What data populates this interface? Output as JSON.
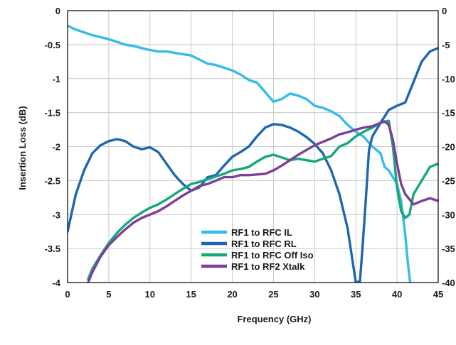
{
  "chart_data": {
    "type": "line",
    "title": "",
    "xlabel": "Frequency (GHz)",
    "ylabel": "Insertion Loss (dB)",
    "xlim": [
      0,
      45
    ],
    "ylim": [
      -4,
      0
    ],
    "x_ticks": [
      "0",
      "5",
      "10",
      "15",
      "20",
      "25",
      "30",
      "35",
      "40",
      "45"
    ],
    "y_ticks": [
      "0",
      "-0.5",
      "-1",
      "-1.5",
      "-2",
      "-2.5",
      "-3",
      "-3.5",
      "-4"
    ],
    "y2_ticks": [
      "0",
      "-5",
      "-10",
      "-15",
      "-20",
      "-25",
      "-30",
      "-35",
      "-40"
    ],
    "grid": true,
    "legend_position": "bottom-center",
    "series": [
      {
        "name": "RF1 to RFC IL",
        "color": "#35bce8",
        "x": [
          0,
          1,
          2,
          3,
          4,
          5,
          6,
          7,
          8,
          9,
          10,
          11,
          12,
          13,
          14,
          15,
          16,
          17,
          18,
          19,
          20,
          21,
          22,
          23,
          24,
          25,
          26,
          27,
          28,
          29,
          30,
          31,
          32,
          33,
          34,
          35,
          36,
          37,
          38,
          38.5,
          39,
          39.5,
          40,
          40.5,
          41,
          41.3,
          41.6
        ],
        "y": [
          -0.22,
          -0.28,
          -0.32,
          -0.36,
          -0.39,
          -0.42,
          -0.46,
          -0.5,
          -0.52,
          -0.55,
          -0.58,
          -0.6,
          -0.6,
          -0.62,
          -0.64,
          -0.66,
          -0.72,
          -0.78,
          -0.8,
          -0.84,
          -0.88,
          -0.94,
          -1.02,
          -1.06,
          -1.2,
          -1.34,
          -1.3,
          -1.22,
          -1.25,
          -1.3,
          -1.4,
          -1.43,
          -1.48,
          -1.55,
          -1.68,
          -1.78,
          -1.86,
          -2.0,
          -2.1,
          -2.3,
          -2.35,
          -2.45,
          -2.55,
          -2.8,
          -3.3,
          -3.7,
          -4.0
        ]
      },
      {
        "name": "RF1 to RFC RL",
        "color": "#1c67b0",
        "x": [
          0,
          1,
          2,
          3,
          4,
          5,
          6,
          7,
          8,
          9,
          10,
          11,
          12,
          13,
          14,
          15,
          16,
          17,
          18,
          19,
          20,
          21,
          22,
          23,
          24,
          25,
          26,
          27,
          28,
          29,
          30,
          31,
          32,
          33,
          34,
          34.5,
          35,
          35.5,
          35.8,
          36.2,
          36.6,
          37,
          38,
          39,
          40,
          41,
          42,
          43,
          44,
          45
        ],
        "y": [
          -3.25,
          -2.7,
          -2.35,
          -2.1,
          -1.98,
          -1.92,
          -1.89,
          -1.92,
          -2.0,
          -2.04,
          -2.01,
          -2.08,
          -2.25,
          -2.42,
          -2.55,
          -2.65,
          -2.6,
          -2.45,
          -2.42,
          -2.28,
          -2.15,
          -2.08,
          -2.0,
          -1.85,
          -1.72,
          -1.67,
          -1.68,
          -1.72,
          -1.78,
          -1.86,
          -1.96,
          -2.1,
          -2.35,
          -2.7,
          -3.2,
          -3.6,
          -4.0,
          -3.98,
          -3.5,
          -2.8,
          -2.05,
          -1.85,
          -1.65,
          -1.46,
          -1.4,
          -1.35,
          -1.05,
          -0.75,
          -0.6,
          -0.55
        ]
      },
      {
        "name": "RF1 to RFC Off Iso",
        "color": "#16a87a",
        "x": [
          2.5,
          3,
          4,
          5,
          6,
          7,
          8,
          9,
          10,
          11,
          12,
          13,
          14,
          15,
          16,
          17,
          18,
          19,
          20,
          21,
          22,
          23,
          24,
          25,
          26,
          27,
          28,
          29,
          30,
          31,
          32,
          33,
          34,
          35,
          36,
          37,
          38,
          39,
          39.5,
          40,
          40.5,
          41,
          41.5,
          42,
          43,
          44,
          45
        ],
        "y": [
          -3.95,
          -3.8,
          -3.6,
          -3.42,
          -3.27,
          -3.15,
          -3.05,
          -2.97,
          -2.9,
          -2.85,
          -2.78,
          -2.7,
          -2.62,
          -2.55,
          -2.52,
          -2.48,
          -2.44,
          -2.4,
          -2.35,
          -2.33,
          -2.3,
          -2.22,
          -2.15,
          -2.12,
          -2.16,
          -2.2,
          -2.18,
          -2.2,
          -2.22,
          -2.18,
          -2.14,
          -2.0,
          -1.95,
          -1.85,
          -1.78,
          -1.72,
          -1.65,
          -1.62,
          -2.0,
          -2.6,
          -2.95,
          -3.05,
          -3.0,
          -2.7,
          -2.5,
          -2.3,
          -2.25
        ]
      },
      {
        "name": "RF1 to RF2 Xtalk",
        "color": "#7d3f98",
        "x": [
          2.5,
          3,
          4,
          5,
          6,
          7,
          8,
          9,
          10,
          11,
          12,
          13,
          14,
          15,
          16,
          17,
          18,
          19,
          20,
          21,
          22,
          23,
          24,
          25,
          26,
          27,
          28,
          29,
          30,
          31,
          32,
          33,
          34,
          35,
          36,
          37,
          38,
          38.5,
          39,
          39.5,
          40,
          40.5,
          41,
          42,
          43,
          44,
          45
        ],
        "y": [
          -4.0,
          -3.85,
          -3.62,
          -3.45,
          -3.33,
          -3.22,
          -3.12,
          -3.05,
          -3.0,
          -2.95,
          -2.88,
          -2.8,
          -2.72,
          -2.65,
          -2.58,
          -2.55,
          -2.5,
          -2.45,
          -2.45,
          -2.42,
          -2.42,
          -2.41,
          -2.4,
          -2.35,
          -2.28,
          -2.2,
          -2.12,
          -2.05,
          -1.98,
          -1.93,
          -1.88,
          -1.82,
          -1.79,
          -1.75,
          -1.72,
          -1.7,
          -1.65,
          -1.63,
          -1.68,
          -1.9,
          -2.25,
          -2.55,
          -2.7,
          -2.85,
          -2.8,
          -2.76,
          -2.8
        ]
      }
    ]
  }
}
